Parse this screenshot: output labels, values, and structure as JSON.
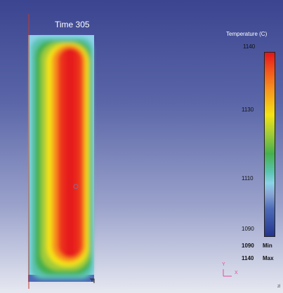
{
  "time_label": "Time 305",
  "legend": {
    "title": "Temperature (C)",
    "ticks": [
      "1140",
      "1130",
      "1110",
      "1090"
    ],
    "min_label": "1090",
    "min_text": "Min",
    "max_label": "1140",
    "max_text": "Max"
  },
  "axis": {
    "y": "Y",
    "x": "X"
  },
  "corner_mark": "zl",
  "colors": {
    "hot": "#e3141b",
    "orange": "#f7931e",
    "yellow": "#f4e313",
    "green": "#45b04d",
    "cyan": "#5bc3b1",
    "cold": "#23358e",
    "axis_marker": "#e84a9a"
  }
}
